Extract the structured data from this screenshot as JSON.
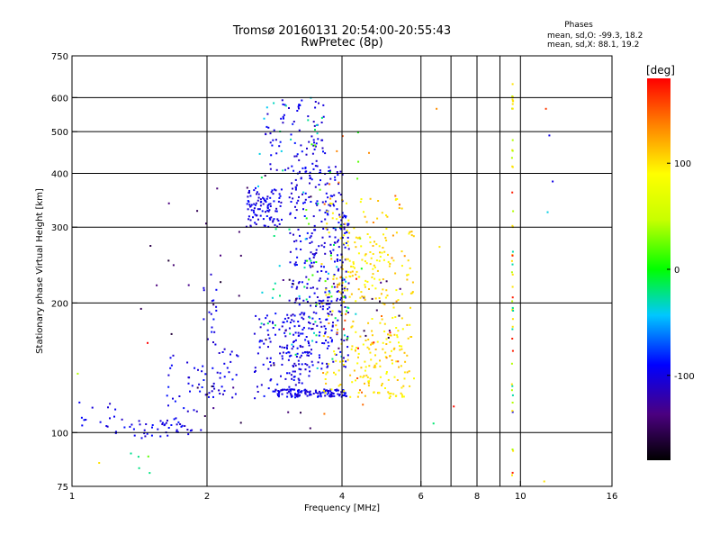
{
  "chart_data": {
    "type": "scatter",
    "title": "Tromsø 20160131 20:54:00-20:55:43",
    "subtitle": "RwPretec (8p)",
    "stats": {
      "heading": "Phases",
      "line_o": "mean, sd,O: -99.3, 18.2",
      "line_x": "mean, sd,X:  88.1, 19.2"
    },
    "xlabel": "Frequency [MHz]",
    "ylabel": "Stationary phase Virtual Height [km]",
    "x_scale": "log",
    "y_scale": "log",
    "xlim": [
      1,
      16
    ],
    "ylim": [
      75,
      750
    ],
    "x_ticks": [
      1,
      2,
      4,
      6,
      8,
      10,
      16
    ],
    "x_tick_labels": [
      "1",
      "2",
      "4",
      "6",
      "8",
      "10",
      "16"
    ],
    "x_grid": [
      2,
      4,
      6,
      7,
      8,
      9,
      10
    ],
    "y_ticks": [
      75,
      100,
      200,
      300,
      400,
      500,
      600,
      750
    ],
    "y_tick_labels": [
      "75",
      "100",
      "200",
      "300",
      "400",
      "500",
      "600",
      "750"
    ],
    "y_grid": [
      100,
      200,
      300,
      400,
      500,
      600
    ],
    "grid": true,
    "colorbar": {
      "label": "[deg]",
      "range": [
        -180,
        180
      ],
      "ticks": [
        100,
        0,
        -100
      ],
      "tick_labels": [
        "100",
        "0",
        "-100"
      ]
    },
    "series": [
      {
        "phase": -100,
        "clusters": [
          {
            "f": [
              1.0,
              1.25
            ],
            "h": [
              100,
              120
            ],
            "n": 14
          },
          {
            "f": [
              1.25,
              1.85
            ],
            "h": [
              97,
              108
            ],
            "n": 40
          },
          {
            "f": [
              1.55,
              1.95
            ],
            "h": [
              100,
              152
            ],
            "n": 35
          },
          {
            "f": [
              1.95,
              2.1
            ],
            "h": [
              118,
              250
            ],
            "n": 25
          },
          {
            "f": [
              2.05,
              2.35
            ],
            "h": [
              120,
              160
            ],
            "n": 30
          },
          {
            "f": [
              2.55,
              3.2
            ],
            "h": [
              120,
              190
            ],
            "n": 90
          },
          {
            "f": [
              2.45,
              2.95
            ],
            "h": [
              300,
              370
            ],
            "n": 100
          },
          {
            "f": [
              2.7,
              3.7
            ],
            "h": [
              400,
              600
            ],
            "n": 80
          },
          {
            "f": [
              3.05,
              4.05
            ],
            "h": [
              200,
              420
            ],
            "n": 220
          },
          {
            "f": [
              3.2,
              3.9
            ],
            "h": [
              140,
              200
            ],
            "n": 90
          },
          {
            "f": [
              2.8,
              4.1
            ],
            "h": [
              121,
              126
            ],
            "n": 120
          },
          {
            "f": [
              3.9,
              4.15
            ],
            "h": [
              140,
              330
            ],
            "n": 60
          },
          {
            "f": [
              2.9,
              3.4
            ],
            "h": [
              130,
              190
            ],
            "n": 50
          }
        ]
      },
      {
        "phase": -150,
        "clusters": [
          {
            "f": [
              1.4,
              3.9
            ],
            "h": [
              98,
              400
            ],
            "n": 40
          },
          {
            "f": [
              3.8,
              5.5
            ],
            "h": [
              150,
              230
            ],
            "n": 15
          }
        ]
      },
      {
        "phase": -30,
        "clusters": [
          {
            "f": [
              2.6,
              4.3
            ],
            "h": [
              140,
              620
            ],
            "n": 60
          },
          {
            "f": [
              1.3,
              1.6
            ],
            "h": [
              75,
              90
            ],
            "n": 4
          }
        ]
      },
      {
        "phase": 10,
        "clusters": [
          {
            "f": [
              3.3,
              4.5
            ],
            "h": [
              150,
              500
            ],
            "n": 25
          }
        ]
      },
      {
        "phase": 100,
        "clusters": [
          {
            "f": [
              3.6,
              5.8
            ],
            "h": [
              120,
              350
            ],
            "n": 230
          },
          {
            "f": [
              4.2,
              5.6
            ],
            "h": [
              120,
              180
            ],
            "n": 60
          },
          {
            "f": [
              4.0,
              5.0
            ],
            "h": [
              200,
              290
            ],
            "n": 60
          }
        ]
      },
      {
        "phase": 140,
        "clusters": [
          {
            "f": [
              3.6,
              5.6
            ],
            "h": [
              110,
              500
            ],
            "n": 30
          }
        ]
      },
      {
        "phase": 175,
        "clusters": [
          {
            "f": [
              1.4,
              1.5
            ],
            "h": [
              160,
              162
            ],
            "n": 1
          },
          {
            "f": [
              4.0,
              5.2
            ],
            "h": [
              150,
              230
            ],
            "n": 5
          }
        ]
      }
    ],
    "vertical_line": {
      "f": 9.6,
      "h": [
        75,
        660
      ],
      "n": 50
    },
    "scattered_points": [
      {
        "f": 1.03,
        "h": 137,
        "phase": 40
      },
      {
        "f": 1.48,
        "h": 88,
        "phase": 20
      },
      {
        "f": 6.5,
        "h": 565,
        "phase": 130
      },
      {
        "f": 6.4,
        "h": 105,
        "phase": -20
      },
      {
        "f": 6.6,
        "h": 270,
        "phase": 100
      },
      {
        "f": 7.1,
        "h": 115,
        "phase": 175
      },
      {
        "f": 11.4,
        "h": 565,
        "phase": 160
      },
      {
        "f": 11.6,
        "h": 490,
        "phase": -100
      },
      {
        "f": 11.8,
        "h": 383,
        "phase": -100
      },
      {
        "f": 11.5,
        "h": 325,
        "phase": -40
      },
      {
        "f": 11.3,
        "h": 77,
        "phase": 100
      },
      {
        "f": 1.15,
        "h": 85,
        "phase": 100
      }
    ]
  }
}
